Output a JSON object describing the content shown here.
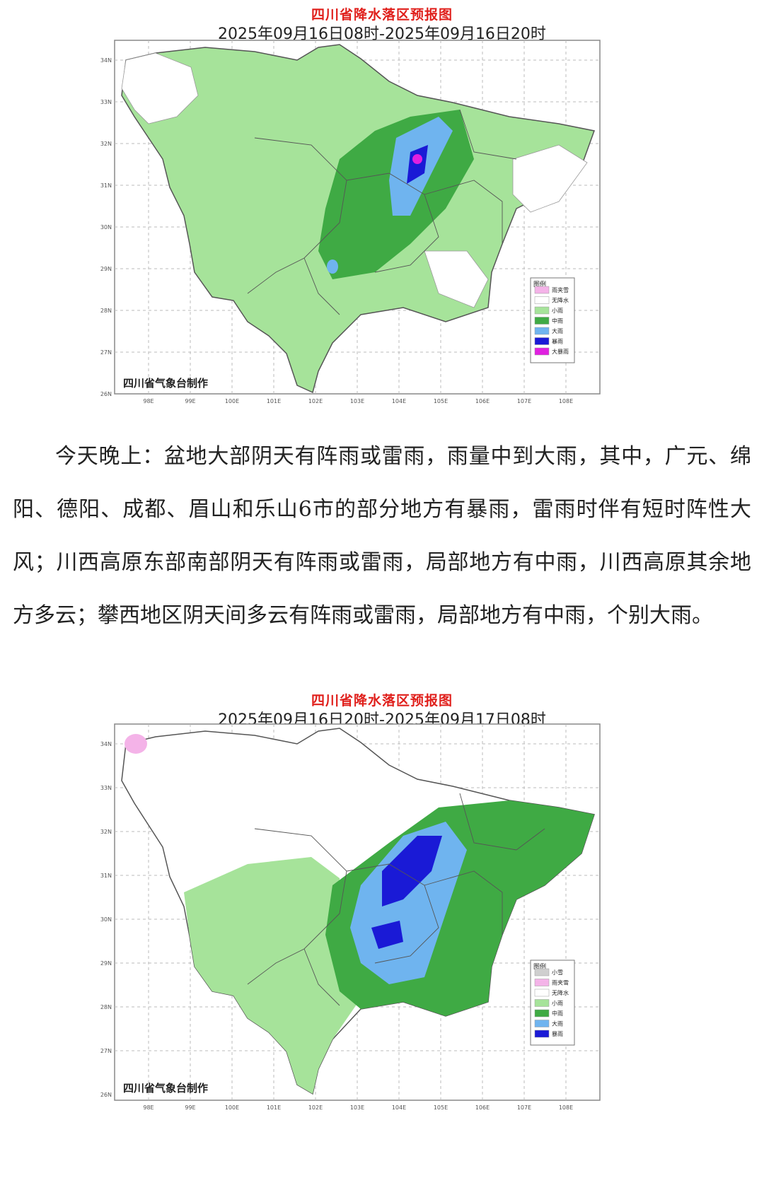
{
  "maps": [
    {
      "title": "四川省降水落区预报图",
      "period": "2025年09月16日08时-2025年09月16日20时",
      "credit": "四川省气象台制作",
      "legend_title": "图例",
      "legend_items": [
        {
          "label": "雨夹雪",
          "color": "#f4b3e8"
        },
        {
          "label": "无降水",
          "color": "#ffffff"
        },
        {
          "label": "小雨",
          "color": "#a6e39a"
        },
        {
          "label": "中雨",
          "color": "#3faa44"
        },
        {
          "label": "大雨",
          "color": "#6fb4ef"
        },
        {
          "label": "暴雨",
          "color": "#1a1ad6"
        },
        {
          "label": "大暴雨",
          "color": "#e020e0"
        }
      ],
      "lat_labels": [
        "34N",
        "33N",
        "32N",
        "31N",
        "30N",
        "29N",
        "28N",
        "27N",
        "26N"
      ],
      "lon_labels": [
        "98E",
        "99E",
        "100E",
        "101E",
        "102E",
        "103E",
        "104E",
        "105E",
        "106E",
        "107E",
        "108E"
      ]
    },
    {
      "title": "四川省降水落区预报图",
      "period": "2025年09月16日20时-2025年09月17日08时",
      "credit": "四川省气象台制作",
      "legend_title": "图例",
      "legend_items": [
        {
          "label": "小雪",
          "color": "#cfcfcf"
        },
        {
          "label": "雨夹雪",
          "color": "#f4b3e8"
        },
        {
          "label": "无降水",
          "color": "#ffffff"
        },
        {
          "label": "小雨",
          "color": "#a6e39a"
        },
        {
          "label": "中雨",
          "color": "#3faa44"
        },
        {
          "label": "大雨",
          "color": "#6fb4ef"
        },
        {
          "label": "暴雨",
          "color": "#1a1ad6"
        }
      ],
      "lat_labels": [
        "34N",
        "33N",
        "32N",
        "31N",
        "30N",
        "29N",
        "28N",
        "27N",
        "26N"
      ],
      "lon_labels": [
        "98E",
        "99E",
        "100E",
        "101E",
        "102E",
        "103E",
        "104E",
        "105E",
        "106E",
        "107E",
        "108E"
      ]
    }
  ],
  "forecast_text": "今天晚上：盆地大部阴天有阵雨或雷雨，雨量中到大雨，其中，广元、绵阳、德阳、成都、眉山和乐山6市的部分地方有暴雨，雷雨时伴有短时阵性大风；川西高原东部南部阴天有阵雨或雷雨，局部地方有中雨，川西高原其余地方多云；攀西地区阴天间多云有阵雨或雷雨，局部地方有中雨，个别大雨。"
}
